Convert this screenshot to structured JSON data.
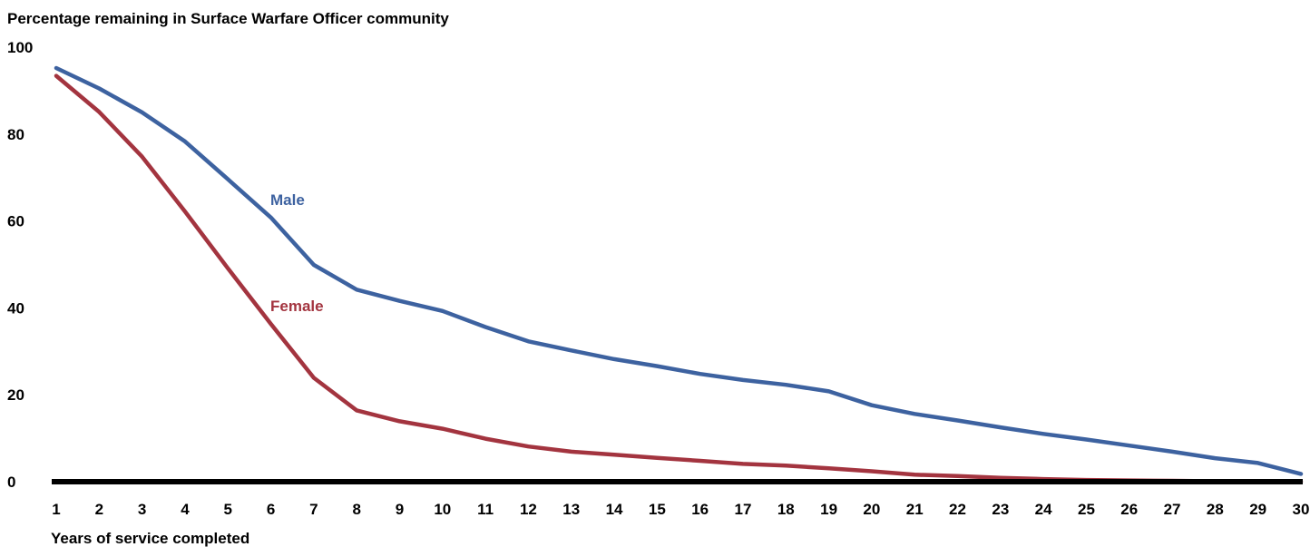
{
  "chart_data": {
    "type": "line",
    "title": "Percentage remaining in Surface Warfare Officer community",
    "xlabel": "Years of service completed",
    "ylabel": "",
    "x": [
      1,
      2,
      3,
      4,
      5,
      6,
      7,
      8,
      9,
      10,
      11,
      12,
      13,
      14,
      15,
      16,
      17,
      18,
      19,
      20,
      21,
      22,
      23,
      24,
      25,
      26,
      27,
      28,
      29,
      30
    ],
    "ylim": [
      0,
      100
    ],
    "yticks": [
      "0",
      "20",
      "40",
      "60",
      "80",
      "100"
    ],
    "grid": false,
    "legend": "inline labels",
    "series": [
      {
        "name": "Male",
        "color": "#3d62a0",
        "values": [
          95.2,
          90.5,
          85.0,
          78.3,
          69.6,
          60.8,
          49.9,
          44.2,
          41.6,
          39.3,
          35.6,
          32.3,
          30.2,
          28.2,
          26.6,
          24.8,
          23.4,
          22.3,
          20.8,
          17.6,
          15.6,
          14.1,
          12.5,
          11.0,
          9.7,
          8.3,
          6.9,
          5.4,
          4.3,
          1.8
        ]
      },
      {
        "name": "Female",
        "color": "#a3343f",
        "values": [
          93.4,
          85.1,
          74.8,
          62.2,
          49.1,
          36.3,
          23.9,
          16.4,
          13.9,
          12.2,
          9.9,
          8.1,
          6.9,
          6.2,
          5.5,
          4.8,
          4.1,
          3.7,
          3.1,
          2.4,
          1.6,
          1.3,
          0.9,
          0.6,
          0.4,
          0.3,
          0.2,
          0.1,
          0.1,
          0.0
        ]
      }
    ]
  }
}
